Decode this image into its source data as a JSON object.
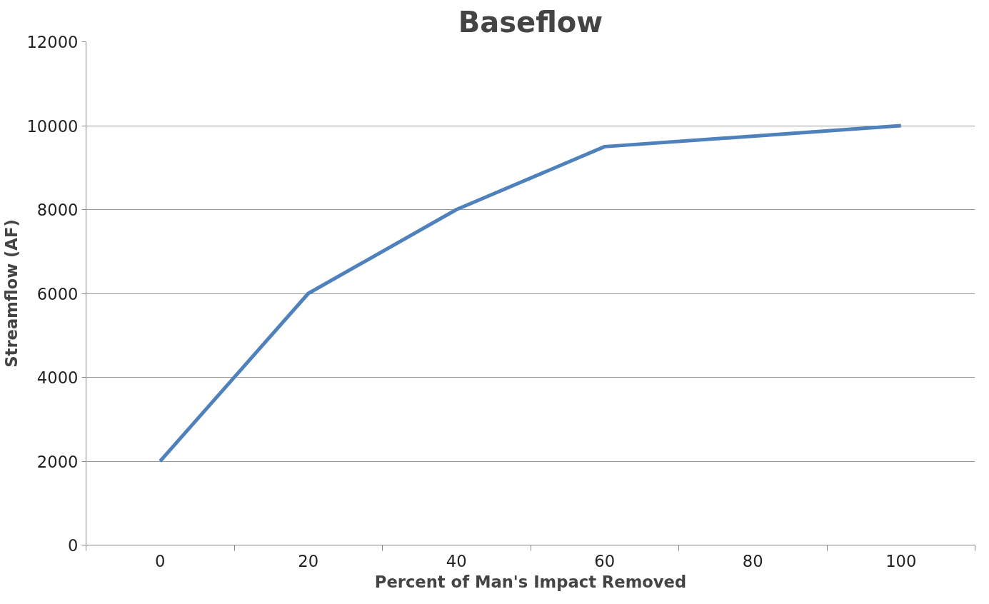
{
  "chart_data": {
    "type": "line",
    "title": "Baseflow",
    "xlabel": "Percent of Man's Impact Removed",
    "ylabel": "Streamflow (AF)",
    "categories": [
      "0",
      "20",
      "40",
      "60",
      "80",
      "100"
    ],
    "series": [
      {
        "color": "#4f81bd",
        "values": [
          2000,
          6000,
          8000,
          9500,
          9750,
          10000
        ]
      }
    ],
    "ylim": [
      0,
      12000
    ],
    "yticks": [
      0,
      2000,
      4000,
      6000,
      8000,
      10000,
      12000
    ],
    "grid": "y",
    "marker": "none",
    "line_style": "solid"
  }
}
